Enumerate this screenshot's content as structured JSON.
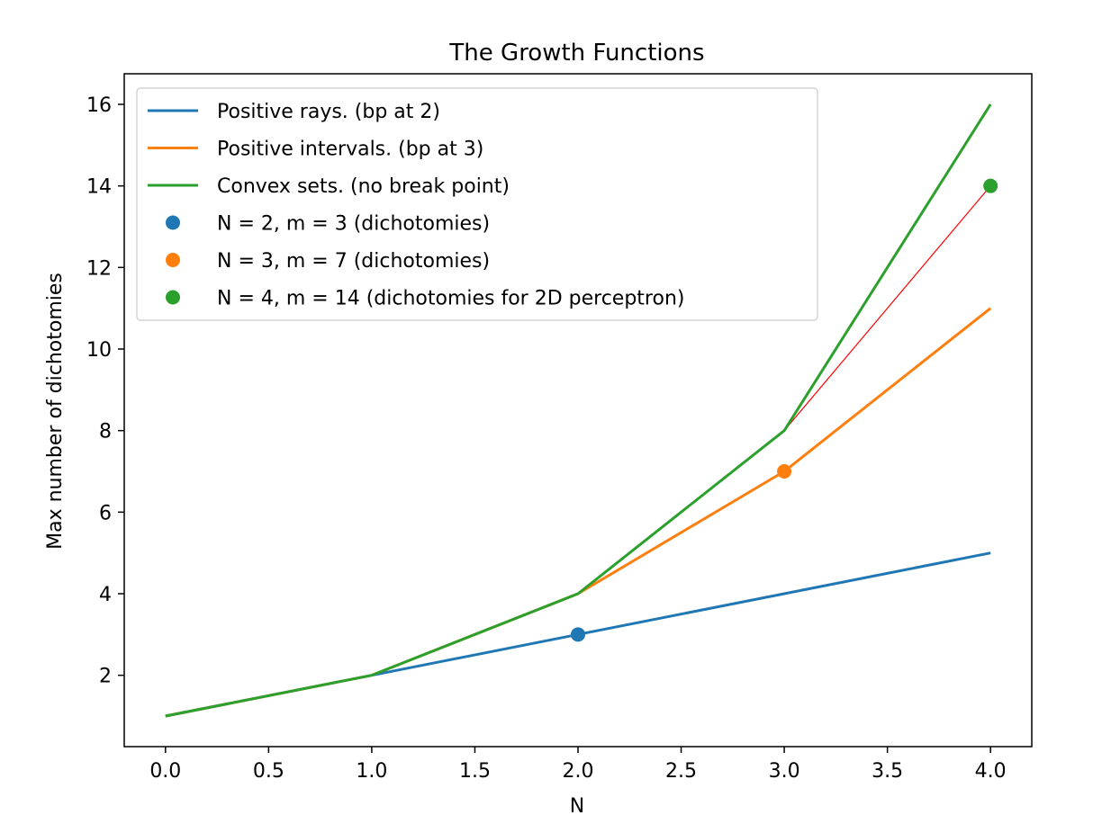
{
  "chart_data": {
    "type": "line",
    "title": "The Growth Functions",
    "xlabel": "N",
    "ylabel": "Max number of dichotomies",
    "xlim": [
      -0.2,
      4.2
    ],
    "ylim": [
      0.25,
      16.75
    ],
    "xticks": [
      0.0,
      0.5,
      1.0,
      1.5,
      2.0,
      2.5,
      3.0,
      3.5,
      4.0
    ],
    "xtick_labels": [
      "0.0",
      "0.5",
      "1.0",
      "1.5",
      "2.0",
      "2.5",
      "3.0",
      "3.5",
      "4.0"
    ],
    "yticks": [
      2,
      4,
      6,
      8,
      10,
      12,
      14,
      16
    ],
    "ytick_labels": [
      "2",
      "4",
      "6",
      "8",
      "10",
      "12",
      "14",
      "16"
    ],
    "grid": false,
    "legend_position": "top-left",
    "series": [
      {
        "name": "Positive rays. (bp at 2)",
        "color": "#1f77b4",
        "x": [
          0,
          1,
          2,
          3,
          4
        ],
        "y": [
          1,
          2,
          3,
          4,
          5
        ]
      },
      {
        "name": "Positive intervals. (bp at 3)",
        "color": "#ff7f0e",
        "x": [
          0,
          1,
          2,
          3,
          4
        ],
        "y": [
          1,
          2,
          4,
          7,
          11
        ]
      },
      {
        "name": "Convex sets. (no break point)",
        "color": "#2ca02c",
        "x": [
          0,
          1,
          2,
          3,
          4
        ],
        "y": [
          1,
          2,
          4,
          8,
          16
        ]
      }
    ],
    "extra_lines": [
      {
        "color": "#ff0000",
        "x": [
          3,
          4
        ],
        "y": [
          8,
          14
        ]
      }
    ],
    "points": [
      {
        "name": "N = 2, m = 3 (dichotomies)",
        "color": "#1f77b4",
        "x": 2,
        "y": 3
      },
      {
        "name": "N = 3, m = 7 (dichotomies)",
        "color": "#ff7f0e",
        "x": 3,
        "y": 7
      },
      {
        "name": "N = 4, m = 14 (dichotomies for 2D perceptron)",
        "color": "#2ca02c",
        "x": 4,
        "y": 14
      }
    ]
  }
}
